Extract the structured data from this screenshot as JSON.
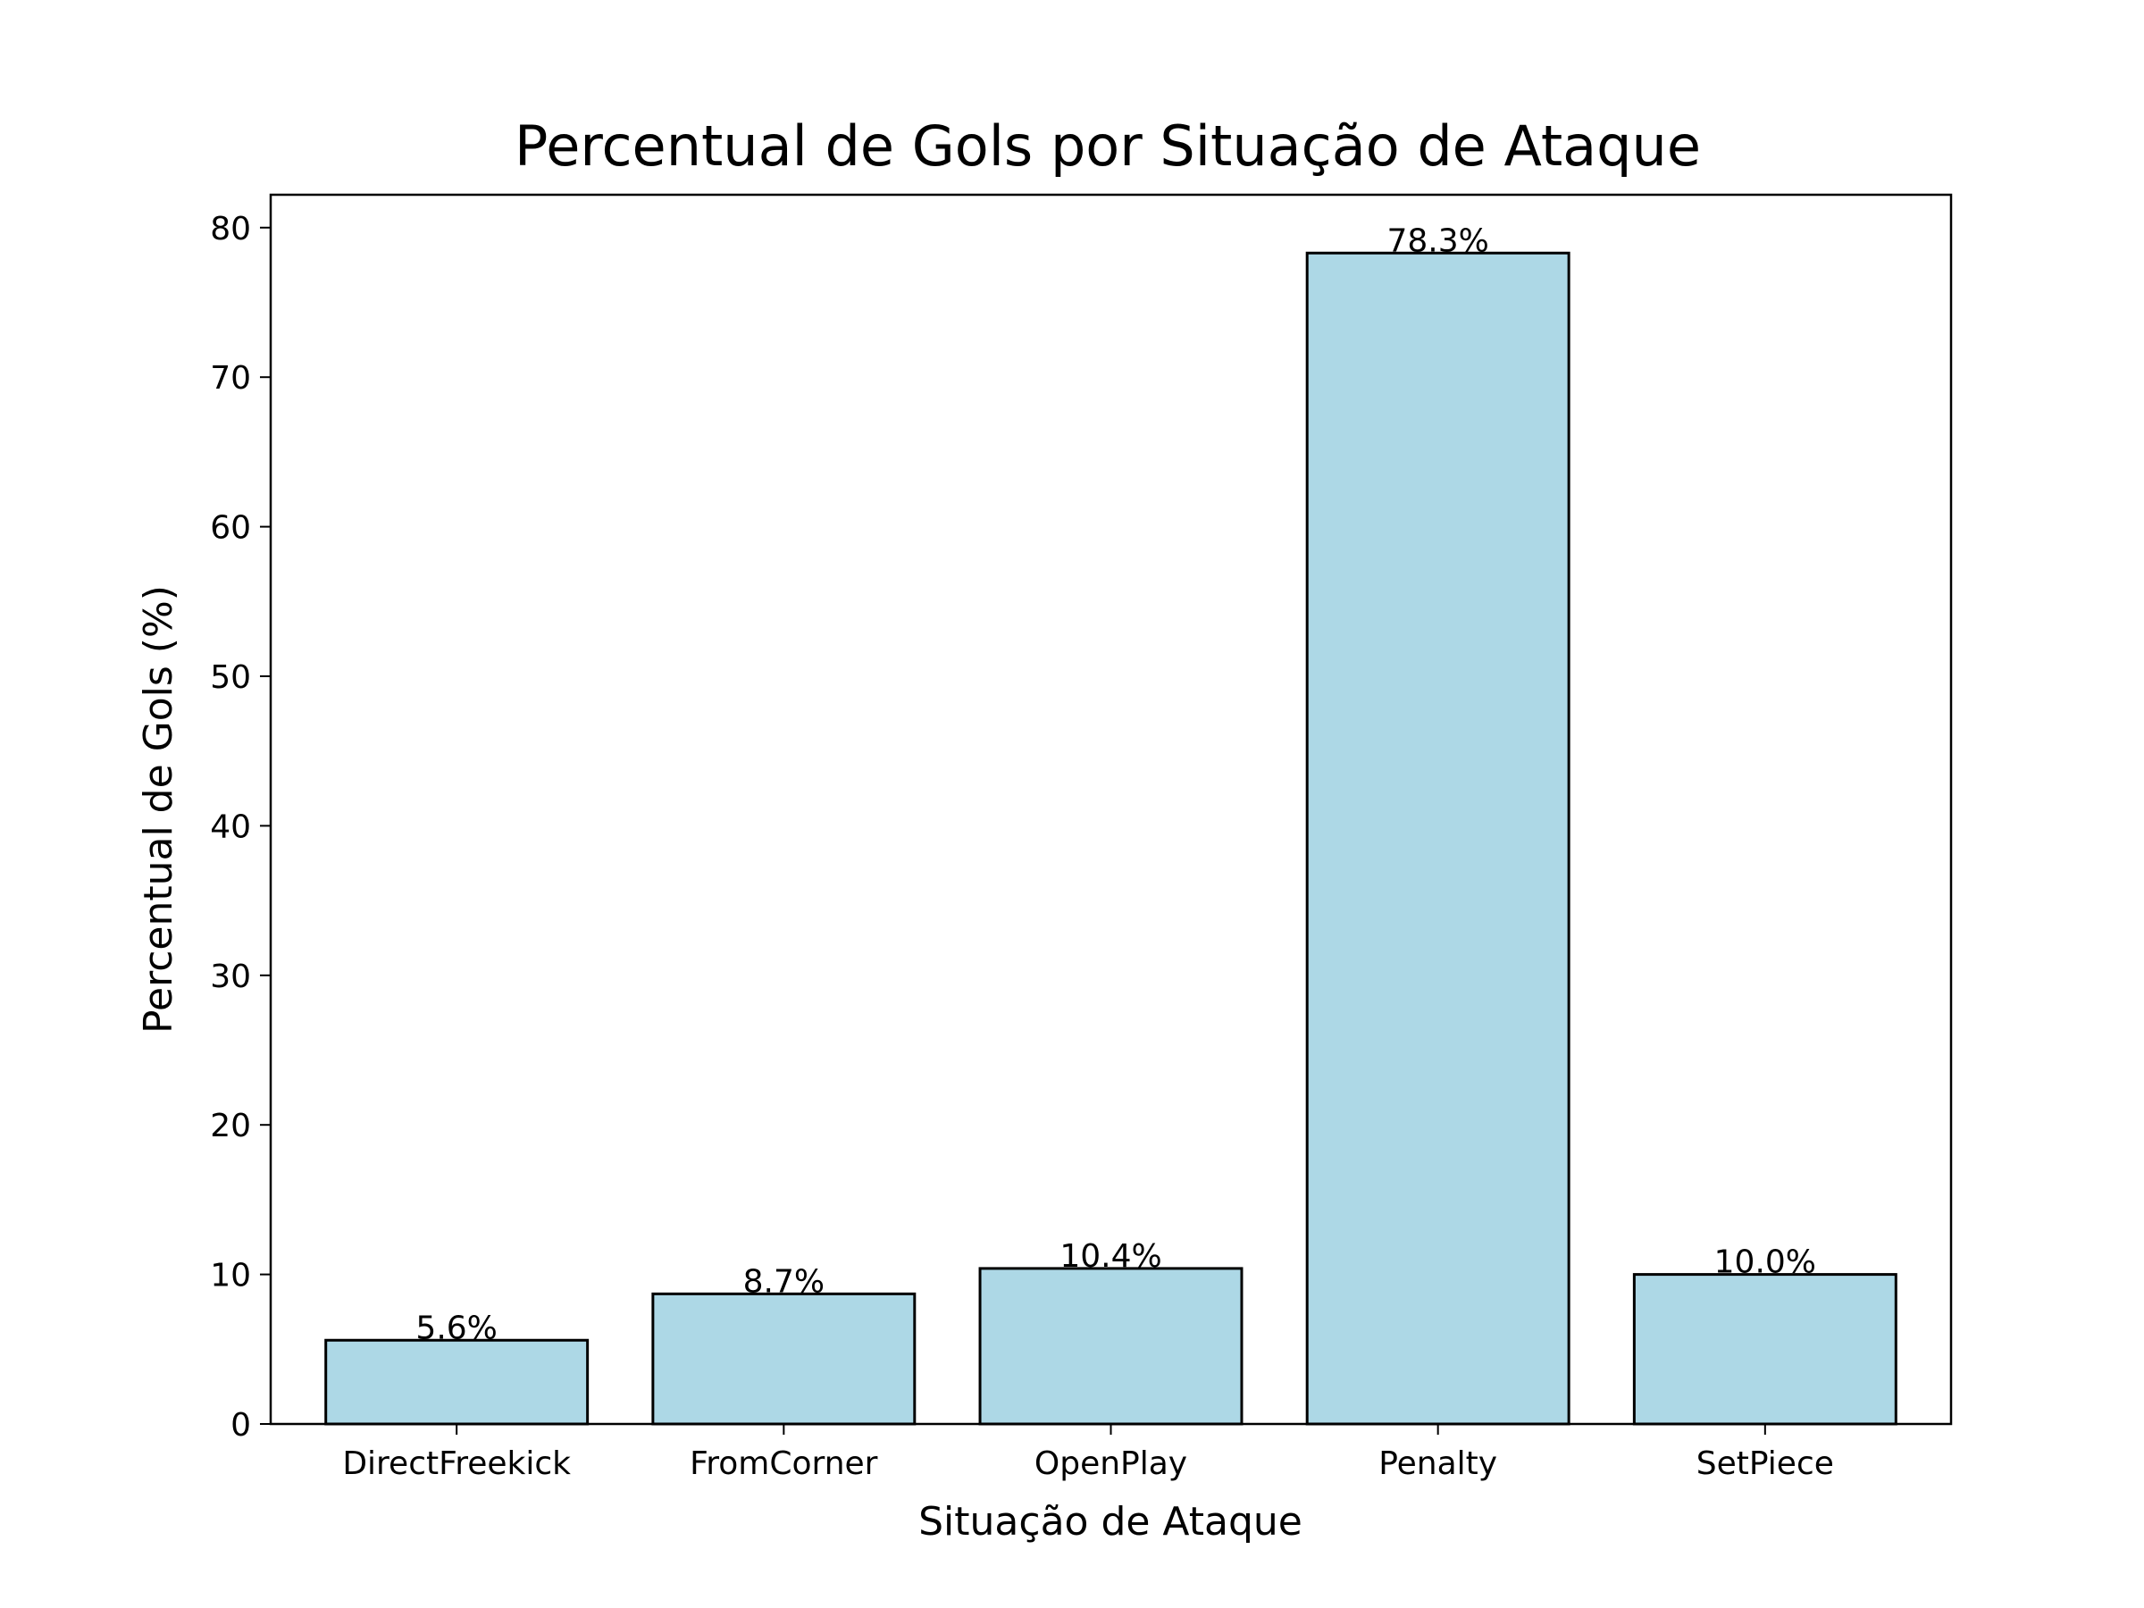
{
  "chart_data": {
    "type": "bar",
    "title": "Percentual de Gols por Situação de Ataque",
    "xlabel": "Situação de Ataque",
    "ylabel": "Percentual de Gols (%)",
    "categories": [
      "DirectFreekick",
      "FromCorner",
      "OpenPlay",
      "Penalty",
      "SetPiece"
    ],
    "values": [
      5.6,
      8.7,
      10.4,
      78.3,
      10.0
    ],
    "value_labels": [
      "5.6%",
      "8.7%",
      "10.4%",
      "78.3%",
      "10.0%"
    ],
    "yticks": [
      0,
      10,
      20,
      30,
      40,
      50,
      60,
      70,
      80
    ],
    "ylim": [
      0,
      82.2
    ],
    "grid": false,
    "bar_color": "#add8e6",
    "edge_color": "#000000"
  }
}
